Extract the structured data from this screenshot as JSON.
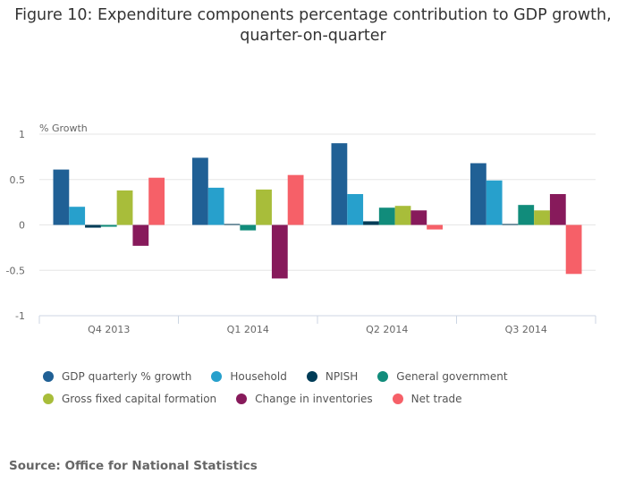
{
  "title": "Figure 10: Expenditure components percentage contribution to GDP growth, quarter-on-quarter",
  "source": "Source: Office for National Statistics",
  "chart_data": {
    "type": "bar",
    "title": "Figure 10: Expenditure components percentage contribution to GDP growth, quarter-on-quarter",
    "xlabel": "",
    "ylabel": "% Growth",
    "ylim": [
      -1,
      1
    ],
    "yticks": [
      1,
      0.5,
      0,
      -0.5,
      -1
    ],
    "ytick_labels": [
      "1",
      "0.5",
      "0",
      "-0.5",
      "-1"
    ],
    "grid": true,
    "legend_position": "bottom",
    "categories": [
      "Q4 2013",
      "Q1 2014",
      "Q2 2014",
      "Q3 2014"
    ],
    "series": [
      {
        "name": "GDP quarterly % growth",
        "color": "#206095",
        "values": [
          0.61,
          0.74,
          0.9,
          0.68
        ]
      },
      {
        "name": "Household",
        "color": "#27a0cc",
        "values": [
          0.2,
          0.41,
          0.34,
          0.49
        ]
      },
      {
        "name": "NPISH",
        "color": "#003c57",
        "values": [
          -0.03,
          0.01,
          0.04,
          0.01
        ]
      },
      {
        "name": "General government",
        "color": "#118c7b",
        "values": [
          -0.02,
          -0.06,
          0.19,
          0.22
        ]
      },
      {
        "name": "Gross fixed capital formation",
        "color": "#a8bd3a",
        "values": [
          0.38,
          0.39,
          0.21,
          0.16
        ]
      },
      {
        "name": "Change in inventories",
        "color": "#871a5b",
        "values": [
          -0.23,
          -0.59,
          0.16,
          0.34
        ]
      },
      {
        "name": "Net trade",
        "color": "#f66068",
        "values": [
          0.52,
          0.55,
          -0.05,
          -0.54
        ]
      }
    ]
  }
}
